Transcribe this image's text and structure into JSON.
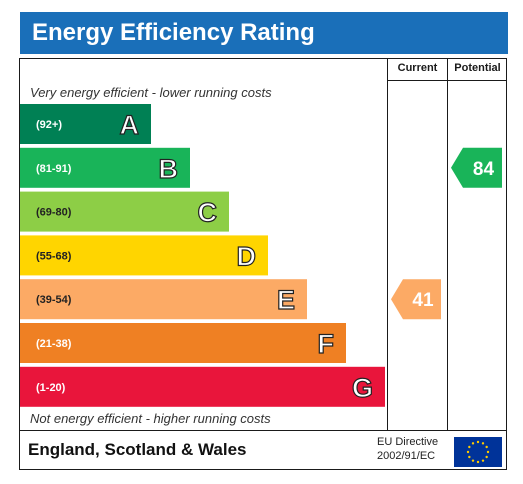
{
  "title": "Energy Efficiency Rating",
  "columns": {
    "current": "Current",
    "potential": "Potential"
  },
  "top_caption": "Very energy efficient - lower running costs",
  "bottom_caption": "Not energy efficient - higher running costs",
  "footer": {
    "region": "England, Scotland & Wales",
    "directive_line1": "EU Directive",
    "directive_line2": "2002/91/EC",
    "flag_icon": "eu-flag-icon"
  },
  "chart_data": {
    "type": "bar",
    "title": "Energy Efficiency Rating",
    "categories": [
      "A",
      "B",
      "C",
      "D",
      "E",
      "F",
      "G"
    ],
    "ranges": [
      "(92+)",
      "(81-91)",
      "(69-80)",
      "(55-68)",
      "(39-54)",
      "(21-38)",
      "(1-20)"
    ],
    "colors": [
      "#008054",
      "#19b459",
      "#8dce46",
      "#ffd500",
      "#fcaa65",
      "#ef8023",
      "#e9153b"
    ],
    "ratings": {
      "current": {
        "value": 41,
        "band": "E"
      },
      "potential": {
        "value": 84,
        "band": "B"
      }
    }
  }
}
